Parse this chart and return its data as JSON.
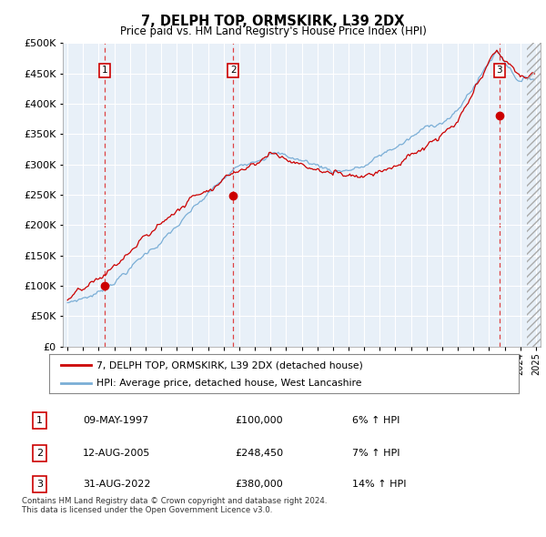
{
  "title": "7, DELPH TOP, ORMSKIRK, L39 2DX",
  "subtitle": "Price paid vs. HM Land Registry's House Price Index (HPI)",
  "legend_entry1": "7, DELPH TOP, ORMSKIRK, L39 2DX (detached house)",
  "legend_entry2": "HPI: Average price, detached house, West Lancashire",
  "sale_color": "#cc0000",
  "hpi_color": "#7aaed6",
  "plot_bg": "#e8f0f8",
  "ylim": [
    0,
    500000
  ],
  "yticks": [
    0,
    50000,
    100000,
    150000,
    200000,
    250000,
    300000,
    350000,
    400000,
    450000,
    500000
  ],
  "xlim_start": 1994.7,
  "xlim_end": 2025.3,
  "sales": [
    {
      "year": 1997.36,
      "price": 100000,
      "label": "1"
    },
    {
      "year": 2005.61,
      "price": 248450,
      "label": "2"
    },
    {
      "year": 2022.66,
      "price": 380000,
      "label": "3"
    }
  ],
  "table_rows": [
    {
      "num": "1",
      "date": "09-MAY-1997",
      "price": "£100,000",
      "hpi": "6% ↑ HPI"
    },
    {
      "num": "2",
      "date": "12-AUG-2005",
      "price": "£248,450",
      "hpi": "7% ↑ HPI"
    },
    {
      "num": "3",
      "date": "31-AUG-2022",
      "price": "£380,000",
      "hpi": "14% ↑ HPI"
    }
  ],
  "footnote": "Contains HM Land Registry data © Crown copyright and database right 2024.\nThis data is licensed under the Open Government Licence v3.0."
}
